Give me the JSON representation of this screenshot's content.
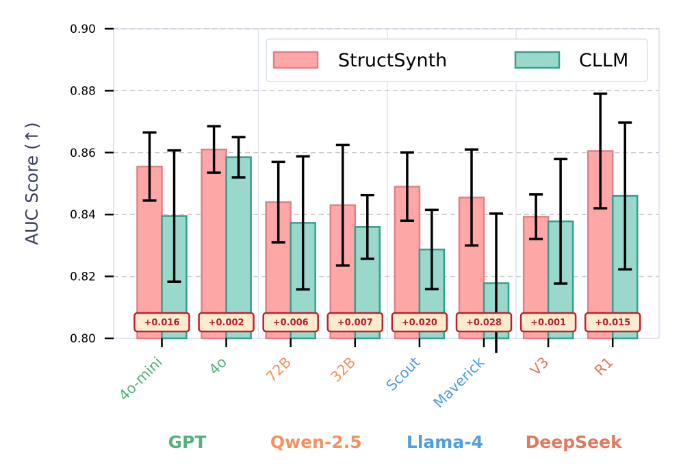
{
  "chart_data": {
    "type": "bar",
    "ylabel": "AUC Score (↑)",
    "ylim": [
      0.8,
      0.9
    ],
    "yticks": [
      "0.80",
      "0.82",
      "0.84",
      "0.86",
      "0.88",
      "0.90"
    ],
    "ytick_values": [
      0.8,
      0.82,
      0.84,
      0.86,
      0.88,
      0.9
    ],
    "grid": true,
    "legend_position": "top-right",
    "categories": [
      "4o-mini",
      "4o",
      "72B",
      "32B",
      "Scout",
      "Maverick",
      "V3",
      "R1"
    ],
    "category_groups": [
      "GPT",
      "GPT",
      "Qwen-2.5",
      "Qwen-2.5",
      "Llama-4",
      "Llama-4",
      "DeepSeek",
      "DeepSeek"
    ],
    "groups": [
      {
        "name": "GPT",
        "color": "#52b37e"
      },
      {
        "name": "Qwen-2.5",
        "color": "#f4925f"
      },
      {
        "name": "Llama-4",
        "color": "#4f9ee0"
      },
      {
        "name": "DeepSeek",
        "color": "#df7a5f"
      }
    ],
    "series": [
      {
        "name": "StructSynth",
        "fill": "#fda7a7",
        "edge": "#e57f87",
        "values": [
          0.8555,
          0.861,
          0.844,
          0.843,
          0.849,
          0.8455,
          0.8393,
          0.8605
        ],
        "errors": [
          0.011,
          0.0075,
          0.013,
          0.0195,
          0.011,
          0.0155,
          0.0072,
          0.0185
        ]
      },
      {
        "name": "CLLM",
        "fill": "#9ad8cc",
        "edge": "#32a08c",
        "values": [
          0.8395,
          0.8585,
          0.8373,
          0.836,
          0.8287,
          0.8178,
          0.8378,
          0.846
        ],
        "errors": [
          0.0212,
          0.0065,
          0.0215,
          0.0103,
          0.0128,
          0.0225,
          0.0201,
          0.0237
        ]
      }
    ],
    "differences": [
      "+0.016",
      "+0.002",
      "+0.006",
      "+0.007",
      "+0.020",
      "+0.028",
      "+0.001",
      "+0.015"
    ]
  }
}
